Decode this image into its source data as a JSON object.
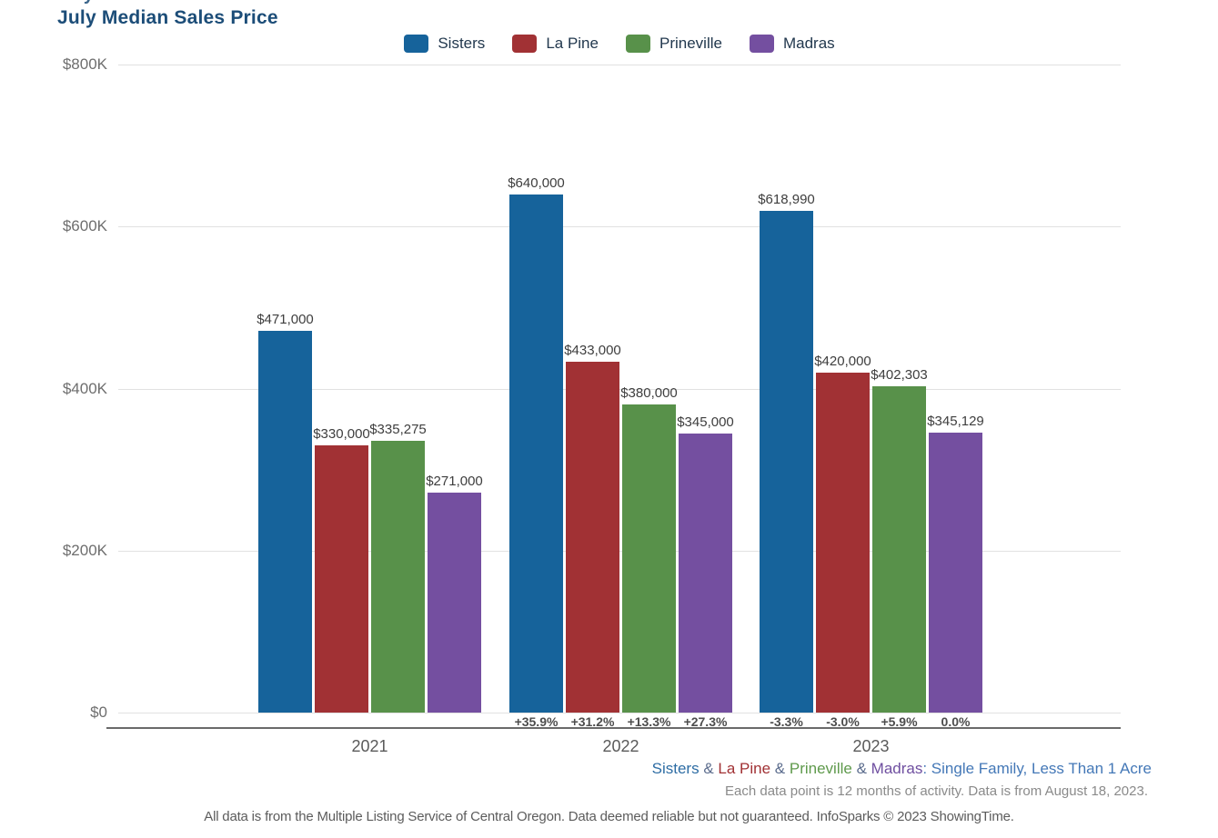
{
  "title": "July Median Sales Price",
  "colors": {
    "title": "#1c4d78",
    "legend_text": "#22384e",
    "tick_text": "#6e6e6e",
    "gridline": "#e1e1e1",
    "axis_line": "#6a6a6a",
    "value_label": "#3e3e3e",
    "pct_label": "#4d4d4d",
    "year_label": "#5a5a5a",
    "sisters": "#16639b",
    "la_pine": "#a13134",
    "prineville": "#58914a",
    "madras": "#744fa0"
  },
  "chart_data": {
    "type": "bar",
    "title": "July Median Sales Price",
    "categories": [
      "2021",
      "2022",
      "2023"
    ],
    "series": [
      {
        "name": "Sisters",
        "color": "#16639b",
        "values": [
          471000,
          640000,
          618990
        ],
        "value_labels": [
          "$471,000",
          "$640,000",
          "$618,990"
        ],
        "pct_change_labels": [
          "",
          "+35.9%",
          "-3.3%"
        ]
      },
      {
        "name": "La Pine",
        "color": "#a13134",
        "values": [
          330000,
          433000,
          420000
        ],
        "value_labels": [
          "$330,000",
          "$433,000",
          "$420,000"
        ],
        "pct_change_labels": [
          "",
          "+31.2%",
          "-3.0%"
        ]
      },
      {
        "name": "Prineville",
        "color": "#58914a",
        "values": [
          335275,
          380000,
          402303
        ],
        "value_labels": [
          "$335,275",
          "$380,000",
          "$402,303"
        ],
        "pct_change_labels": [
          "",
          "+13.3%",
          "+5.9%"
        ]
      },
      {
        "name": "Madras",
        "color": "#744fa0",
        "values": [
          271000,
          345000,
          345129
        ],
        "value_labels": [
          "$271,000",
          "$345,000",
          "$345,129"
        ],
        "pct_change_labels": [
          "",
          "+27.3%",
          "0.0%"
        ]
      }
    ],
    "ylim": [
      0,
      800000
    ],
    "y_ticks": [
      {
        "label": "$800K",
        "value": 800000
      },
      {
        "label": "$600K",
        "value": 600000
      },
      {
        "label": "$400K",
        "value": 400000
      },
      {
        "label": "$200K",
        "value": 200000
      },
      {
        "label": "$0",
        "value": 0
      }
    ],
    "grid": true,
    "legend_position": "top"
  },
  "footnotes": {
    "line1_segments": [
      {
        "text": "Sisters",
        "color": "#2e6da4"
      },
      {
        "text": " & ",
        "color": "#5a6b8c"
      },
      {
        "text": "La Pine",
        "color": "#a13134"
      },
      {
        "text": " & ",
        "color": "#5a6b8c"
      },
      {
        "text": "Prineville",
        "color": "#5f9a4c"
      },
      {
        "text": " & ",
        "color": "#5a6b8c"
      },
      {
        "text": "Madras",
        "color": "#6f4fa0"
      },
      {
        "text": ": Single Family, Less Than 1 Acre",
        "color": "#4478b7"
      }
    ],
    "line2": "Each data point is 12 months of activity. Data is from August 18, 2023.",
    "line3": "All data is from the Multiple Listing Service of Central Oregon. Data deemed reliable but not guaranteed. InfoSparks © 2023 ShowingTime."
  }
}
